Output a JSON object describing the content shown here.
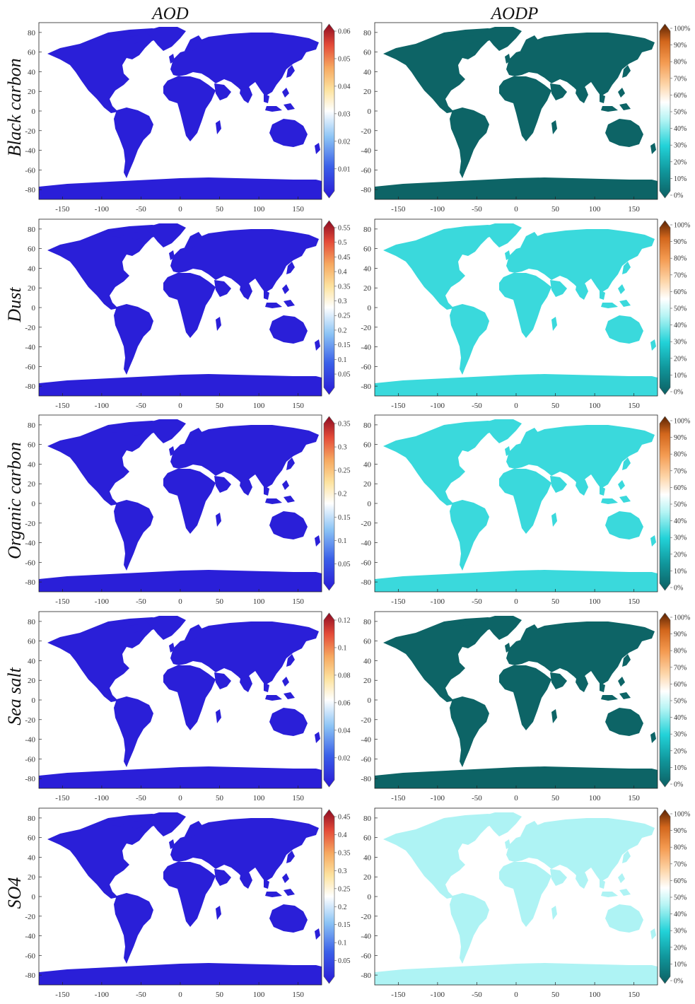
{
  "column_titles": [
    "AOD",
    "AODP"
  ],
  "row_titles": [
    "Black carbon",
    "Dust",
    "Organic carbon",
    "Sea salt",
    "SO4"
  ],
  "x_ticks": [
    "-150",
    "-100",
    "-50",
    "0",
    "50",
    "100",
    "150"
  ],
  "y_ticks": [
    "80",
    "60",
    "40",
    "20",
    "0",
    "-20",
    "-40",
    "-60",
    "-80"
  ],
  "colorbar_ticks": {
    "Black carbon": [
      "0.06",
      "0.05",
      "0.04",
      "0.03",
      "0.02",
      "0.01"
    ],
    "Dust": [
      "0.55",
      "0.5",
      "0.45",
      "0.4",
      "0.35",
      "0.3",
      "0.25",
      "0.2",
      "0.15",
      "0.1",
      "0.05"
    ],
    "Organic carbon": [
      "0.35",
      "0.3",
      "0.25",
      "0.2",
      "0.15",
      "0.1",
      "0.05"
    ],
    "Sea salt": [
      "0.12",
      "0.1",
      "0.08",
      "0.06",
      "0.04",
      "0.02"
    ],
    "SO4": [
      "0.45",
      "0.4",
      "0.35",
      "0.3",
      "0.25",
      "0.2",
      "0.15",
      "0.1",
      "0.05"
    ],
    "AODP": [
      "100%",
      "90%",
      "80%",
      "70%",
      "60%",
      "50%",
      "40%",
      "30%",
      "20%",
      "10%",
      "0%"
    ]
  },
  "colors": {
    "aod_scale": [
      "#2a18d6",
      "#3550e6",
      "#5f8ff0",
      "#a8d4f6",
      "#ffffff",
      "#fde3a0",
      "#f6a860",
      "#ea5a3a",
      "#c81a2a",
      "#8c0b22"
    ],
    "aodp_scale": [
      "#0d5f62",
      "#0f8a8e",
      "#22d0d6",
      "#9df1f2",
      "#ffffff",
      "#fdd9b0",
      "#f7a05c",
      "#e56f1e",
      "#a8480e",
      "#5a2404"
    ],
    "aod_land": "#2a1fd8",
    "aodp_dark": "#0d6466",
    "aodp_cyan": "#3ad9dc",
    "aodp_light": "#aef3f4",
    "aodp_orange": "#f5a05e",
    "aodp_deep_orange": "#dc6a22",
    "aod_mid": "#5f8ff0",
    "aod_hot": "#e8503a",
    "aod_warm": "#f9c878"
  }
}
